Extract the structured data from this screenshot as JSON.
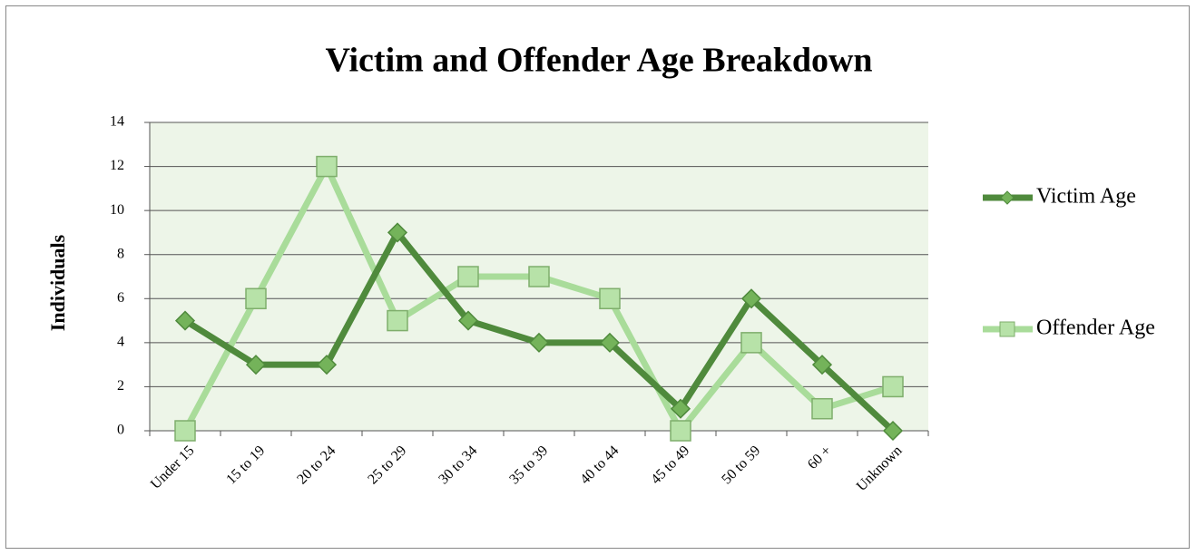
{
  "chart_data": {
    "type": "line",
    "title": "Victim and Offender Age Breakdown",
    "y_label": "Individuals",
    "categories": [
      "Under 15",
      "15 to 19",
      "20 to 24",
      "25 to 29",
      "30 to 34",
      "35 to 39",
      "40 to 44",
      "45 to 49",
      "50 to 59",
      "60 +",
      "Unknown"
    ],
    "series": [
      {
        "name": "Victim Age",
        "color": "#4f8a3c",
        "marker": "diamond",
        "marker_color": "#74b35a",
        "values": [
          5,
          3,
          3,
          9,
          5,
          4,
          4,
          1,
          6,
          3,
          0
        ]
      },
      {
        "name": "Offender Age",
        "color": "#a9dc9a",
        "marker": "square",
        "marker_color": "#b7e2a8",
        "values": [
          0,
          6,
          12,
          5,
          7,
          7,
          6,
          0,
          4,
          1,
          2
        ]
      }
    ],
    "ylim": [
      0,
      14
    ],
    "yticks": [
      0,
      2,
      4,
      6,
      8,
      10,
      12,
      14
    ],
    "grid": true,
    "legend": "right",
    "plot_background": "#edf5e8"
  }
}
